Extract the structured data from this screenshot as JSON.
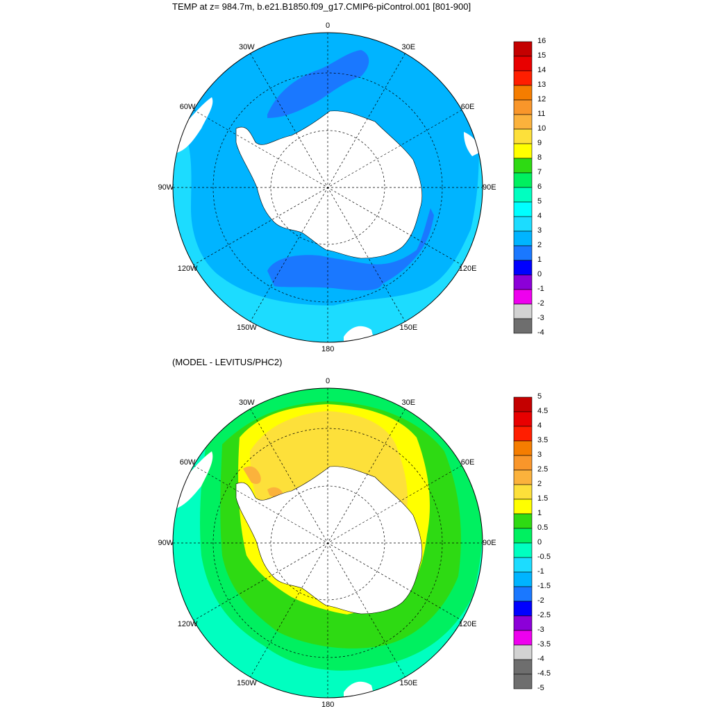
{
  "panels": [
    {
      "id": "top",
      "title": "TEMP at z= 984.7m, b.e21.B1850.f09_g17.CMIP6-piControl.001 [801-900]",
      "colorbar": {
        "labels": [
          "16",
          "15",
          "14",
          "13",
          "12",
          "11",
          "10",
          "9",
          "8",
          "7",
          "6",
          "5",
          "4",
          "3",
          "2",
          "1",
          "0",
          "-1",
          "-2",
          "-3",
          "-4"
        ],
        "colors": [
          "#c40000",
          "#e80000",
          "#ff1e00",
          "#f57d00",
          "#f9962a",
          "#fbb23c",
          "#fde03a",
          "#ffff00",
          "#2eda13",
          "#00f060",
          "#00ffc0",
          "#00ffff",
          "#1cdcff",
          "#00b4ff",
          "#1a78ff",
          "#0000ff",
          "#8c00d8",
          "#ee00ee",
          "#d2d2d2",
          "#6e6e6e"
        ]
      },
      "lon_labels": [
        "0",
        "30E",
        "60E",
        "90E",
        "120E",
        "150E",
        "180",
        "150W",
        "120W",
        "90W",
        "60W",
        "30W"
      ]
    },
    {
      "id": "bottom",
      "title": "(MODEL - LEVITUS/PHC2)",
      "colorbar": {
        "labels": [
          "5",
          "4.5",
          "4",
          "3.5",
          "3",
          "2.5",
          "2",
          "1.5",
          "1",
          "0.5",
          "0",
          "-0.5",
          "-1",
          "-1.5",
          "-2",
          "-2.5",
          "-3",
          "-3.5",
          "-4",
          "-4.5",
          "-5"
        ],
        "colors": [
          "#c40000",
          "#e80000",
          "#ff1e00",
          "#f57d00",
          "#f9962a",
          "#fbb23c",
          "#fde03a",
          "#ffff00",
          "#2eda13",
          "#00f060",
          "#00ffc0",
          "#1cdcff",
          "#00b4ff",
          "#1a78ff",
          "#0000ff",
          "#8c00d8",
          "#ee00ee",
          "#d2d2d2",
          "#6e6e6e",
          "#6e6e6e"
        ]
      },
      "lon_labels": [
        "0",
        "30E",
        "60E",
        "90E",
        "120E",
        "150E",
        "180",
        "150W",
        "120W",
        "90W",
        "60W",
        "30W"
      ]
    }
  ]
}
